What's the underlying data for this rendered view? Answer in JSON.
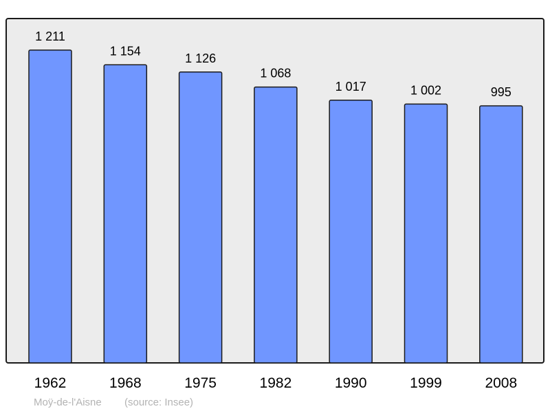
{
  "chart_data": {
    "type": "bar",
    "categories": [
      "1962",
      "1968",
      "1975",
      "1982",
      "1990",
      "1999",
      "2008"
    ],
    "values": [
      1211,
      1154,
      1126,
      1068,
      1017,
      1002,
      995
    ],
    "value_labels": [
      "1 211",
      "1 154",
      "1 126",
      "1 068",
      "1 017",
      "1 002",
      "995"
    ],
    "title": "",
    "xlabel": "",
    "ylabel": "",
    "ylim": [
      0,
      1333
    ],
    "grid": false,
    "bar_color": "#7096ff",
    "background_color": "#ececec"
  },
  "footer": {
    "place": "Moÿ-de-l'Aisne",
    "source": "(source: Insee)"
  }
}
